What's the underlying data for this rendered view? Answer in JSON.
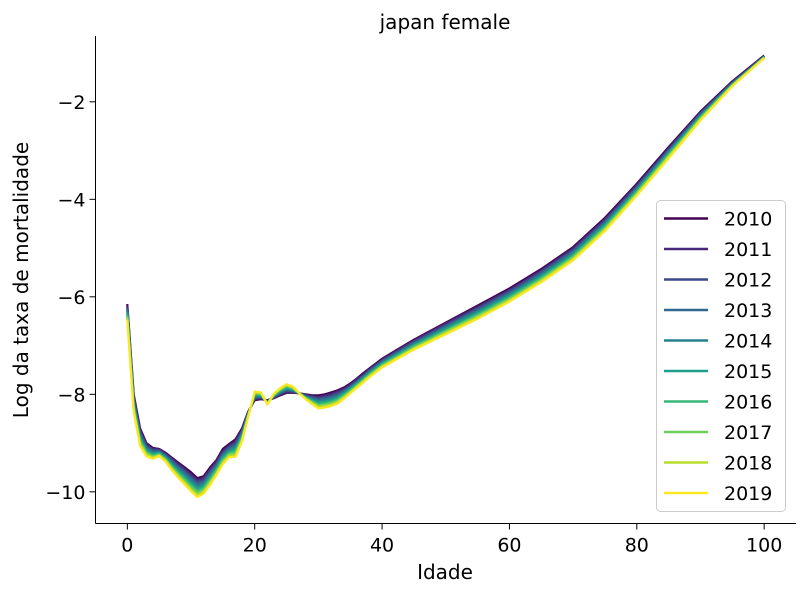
{
  "chart_data": {
    "type": "line",
    "title": "japan female",
    "xlabel": "Idade",
    "ylabel": "Log da taxa de mortalidade",
    "xlim": [
      -5,
      105
    ],
    "ylim": [
      -10.65,
      -0.65
    ],
    "xticks": [
      0,
      20,
      40,
      60,
      80,
      100
    ],
    "yticks": [
      -10,
      -8,
      -6,
      -4,
      -2
    ],
    "xtick_labels": [
      "0",
      "20",
      "40",
      "60",
      "80",
      "100"
    ],
    "ytick_labels": [
      "−10",
      "−8",
      "−6",
      "−4",
      "−2"
    ],
    "grid": false,
    "legend_position": "lower-right",
    "x": [
      0,
      1,
      2,
      3,
      4,
      5,
      6,
      7,
      8,
      9,
      10,
      11,
      12,
      13,
      14,
      15,
      16,
      17,
      18,
      19,
      20,
      21,
      22,
      23,
      24,
      25,
      26,
      27,
      28,
      29,
      30,
      31,
      32,
      33,
      34,
      35,
      36,
      37,
      38,
      39,
      40,
      45,
      50,
      55,
      60,
      65,
      70,
      75,
      80,
      85,
      90,
      95,
      100
    ],
    "series": [
      {
        "name": "2010",
        "color": "#440154",
        "values": [
          -6.15,
          -8.0,
          -8.7,
          -9.0,
          -9.1,
          -9.12,
          -9.2,
          -9.3,
          -9.4,
          -9.5,
          -9.6,
          -9.72,
          -9.68,
          -9.5,
          -9.35,
          -9.12,
          -9.02,
          -8.92,
          -8.7,
          -8.35,
          -8.12,
          -8.1,
          -8.12,
          -8.08,
          -8.02,
          -7.97,
          -7.97,
          -7.98,
          -8.0,
          -8.02,
          -8.02,
          -8.0,
          -7.96,
          -7.92,
          -7.86,
          -7.78,
          -7.68,
          -7.57,
          -7.47,
          -7.37,
          -7.27,
          -6.88,
          -6.53,
          -6.18,
          -5.83,
          -5.43,
          -4.98,
          -4.38,
          -3.68,
          -2.93,
          -2.2,
          -1.58,
          -1.05
        ]
      },
      {
        "name": "2011",
        "color": "#482878",
        "values": [
          -6.18,
          -8.04,
          -8.74,
          -9.03,
          -9.12,
          -9.13,
          -9.22,
          -9.32,
          -9.43,
          -9.53,
          -9.64,
          -9.76,
          -9.71,
          -9.54,
          -9.38,
          -9.16,
          -9.05,
          -8.96,
          -8.73,
          -8.36,
          -8.1,
          -8.08,
          -8.13,
          -8.07,
          -8.0,
          -7.95,
          -7.96,
          -7.98,
          -8.01,
          -8.04,
          -8.05,
          -8.03,
          -7.99,
          -7.95,
          -7.89,
          -7.8,
          -7.7,
          -7.6,
          -7.49,
          -7.39,
          -7.29,
          -6.9,
          -6.55,
          -6.21,
          -5.86,
          -5.46,
          -5.01,
          -4.41,
          -3.71,
          -2.96,
          -2.22,
          -1.6,
          -1.06
        ]
      },
      {
        "name": "2012",
        "color": "#3e4989",
        "values": [
          -6.22,
          -8.08,
          -8.78,
          -9.06,
          -9.15,
          -9.15,
          -9.24,
          -9.35,
          -9.47,
          -9.57,
          -9.69,
          -9.8,
          -9.75,
          -9.58,
          -9.42,
          -9.19,
          -9.08,
          -9.0,
          -8.76,
          -8.38,
          -8.08,
          -8.07,
          -8.14,
          -8.06,
          -7.99,
          -7.93,
          -7.94,
          -7.98,
          -8.03,
          -8.06,
          -8.08,
          -8.06,
          -8.03,
          -7.98,
          -7.91,
          -7.83,
          -7.73,
          -7.62,
          -7.51,
          -7.41,
          -7.31,
          -6.92,
          -6.58,
          -6.24,
          -5.89,
          -5.49,
          -5.04,
          -4.44,
          -3.74,
          -2.98,
          -2.24,
          -1.61,
          -1.07
        ]
      },
      {
        "name": "2013",
        "color": "#31688e",
        "values": [
          -6.26,
          -8.12,
          -8.82,
          -9.09,
          -9.17,
          -9.17,
          -9.26,
          -9.38,
          -9.5,
          -9.61,
          -9.73,
          -9.85,
          -9.79,
          -9.62,
          -9.45,
          -9.23,
          -9.11,
          -9.04,
          -8.79,
          -8.39,
          -8.06,
          -8.05,
          -8.15,
          -8.05,
          -7.97,
          -7.91,
          -7.93,
          -7.98,
          -8.04,
          -8.08,
          -8.11,
          -8.09,
          -8.06,
          -8.01,
          -7.94,
          -7.85,
          -7.75,
          -7.64,
          -7.53,
          -7.43,
          -7.33,
          -6.95,
          -6.61,
          -6.27,
          -5.92,
          -5.52,
          -5.07,
          -4.47,
          -3.76,
          -3.01,
          -2.26,
          -1.62,
          -1.07
        ]
      },
      {
        "name": "2014",
        "color": "#26828e",
        "values": [
          -6.29,
          -8.16,
          -8.86,
          -9.12,
          -9.2,
          -9.19,
          -9.28,
          -9.41,
          -9.54,
          -9.65,
          -9.77,
          -9.89,
          -9.83,
          -9.66,
          -9.48,
          -9.26,
          -9.14,
          -9.08,
          -8.82,
          -8.4,
          -8.04,
          -8.04,
          -8.16,
          -8.04,
          -7.95,
          -7.89,
          -7.92,
          -7.98,
          -8.05,
          -8.1,
          -8.14,
          -8.12,
          -8.09,
          -8.04,
          -7.96,
          -7.87,
          -7.77,
          -7.66,
          -7.55,
          -7.45,
          -7.35,
          -6.97,
          -6.63,
          -6.3,
          -5.95,
          -5.55,
          -5.1,
          -4.5,
          -3.79,
          -3.03,
          -2.28,
          -1.63,
          -1.08
        ]
      },
      {
        "name": "2015",
        "color": "#1f9e89",
        "values": [
          -6.33,
          -8.2,
          -8.9,
          -9.15,
          -9.22,
          -9.2,
          -9.3,
          -9.44,
          -9.57,
          -9.69,
          -9.82,
          -9.93,
          -9.87,
          -9.7,
          -9.52,
          -9.29,
          -9.17,
          -9.12,
          -8.85,
          -8.41,
          -8.02,
          -8.02,
          -8.17,
          -8.03,
          -7.94,
          -7.87,
          -7.9,
          -7.98,
          -8.06,
          -8.12,
          -8.17,
          -8.15,
          -8.12,
          -8.07,
          -7.99,
          -7.89,
          -7.79,
          -7.68,
          -7.57,
          -7.47,
          -7.37,
          -6.99,
          -6.66,
          -6.33,
          -5.98,
          -5.58,
          -5.13,
          -4.53,
          -3.82,
          -3.06,
          -2.3,
          -1.64,
          -1.08
        ]
      },
      {
        "name": "2016",
        "color": "#35b779",
        "values": [
          -6.37,
          -8.24,
          -8.94,
          -9.18,
          -9.25,
          -9.22,
          -9.32,
          -9.47,
          -9.61,
          -9.73,
          -9.86,
          -9.98,
          -9.91,
          -9.74,
          -9.55,
          -9.33,
          -9.2,
          -9.16,
          -8.88,
          -8.42,
          -8.0,
          -8.01,
          -8.18,
          -8.02,
          -7.92,
          -7.85,
          -7.89,
          -7.98,
          -8.07,
          -8.14,
          -8.2,
          -8.18,
          -8.15,
          -8.1,
          -8.01,
          -7.92,
          -7.81,
          -7.7,
          -7.59,
          -7.49,
          -7.39,
          -7.01,
          -6.69,
          -6.36,
          -6.01,
          -5.61,
          -5.16,
          -4.56,
          -3.84,
          -3.08,
          -2.32,
          -1.65,
          -1.09
        ]
      },
      {
        "name": "2017",
        "color": "#6ece58",
        "values": [
          -6.4,
          -8.28,
          -8.98,
          -9.21,
          -9.27,
          -9.24,
          -9.34,
          -9.5,
          -9.64,
          -9.77,
          -9.9,
          -10.02,
          -9.95,
          -9.78,
          -9.58,
          -9.36,
          -9.23,
          -9.2,
          -8.91,
          -8.43,
          -7.98,
          -7.99,
          -8.19,
          -8.01,
          -7.9,
          -7.83,
          -7.87,
          -7.98,
          -8.08,
          -8.16,
          -8.23,
          -8.21,
          -8.18,
          -8.13,
          -8.04,
          -7.94,
          -7.83,
          -7.72,
          -7.61,
          -7.51,
          -7.41,
          -7.04,
          -6.71,
          -6.39,
          -6.04,
          -5.64,
          -5.19,
          -4.59,
          -3.87,
          -3.11,
          -2.34,
          -1.66,
          -1.09
        ]
      },
      {
        "name": "2018",
        "color": "#b5de2b",
        "values": [
          -6.44,
          -8.32,
          -9.02,
          -9.24,
          -9.3,
          -9.25,
          -9.36,
          -9.53,
          -9.68,
          -9.81,
          -9.95,
          -10.07,
          -9.99,
          -9.82,
          -9.62,
          -9.4,
          -9.26,
          -9.24,
          -8.94,
          -8.44,
          -7.96,
          -7.98,
          -8.2,
          -8.0,
          -7.89,
          -7.81,
          -7.86,
          -7.98,
          -8.09,
          -8.18,
          -8.26,
          -8.24,
          -8.21,
          -8.16,
          -8.06,
          -7.96,
          -7.85,
          -7.74,
          -7.63,
          -7.53,
          -7.43,
          -7.06,
          -6.74,
          -6.42,
          -6.07,
          -5.67,
          -5.22,
          -4.62,
          -3.9,
          -3.13,
          -2.36,
          -1.67,
          -1.1
        ]
      },
      {
        "name": "2019",
        "color": "#fde725",
        "values": [
          -6.48,
          -8.36,
          -9.06,
          -9.27,
          -9.32,
          -9.27,
          -9.38,
          -9.56,
          -9.71,
          -9.85,
          -9.99,
          -10.11,
          -10.03,
          -9.86,
          -9.65,
          -9.43,
          -9.29,
          -9.28,
          -8.97,
          -8.45,
          -7.94,
          -7.96,
          -8.21,
          -7.99,
          -7.87,
          -7.79,
          -7.84,
          -7.98,
          -8.1,
          -8.2,
          -8.29,
          -8.27,
          -8.24,
          -8.19,
          -8.09,
          -7.98,
          -7.87,
          -7.76,
          -7.65,
          -7.55,
          -7.45,
          -7.08,
          -6.77,
          -6.45,
          -6.1,
          -5.7,
          -5.25,
          -4.65,
          -3.92,
          -3.16,
          -2.38,
          -1.68,
          -1.1
        ]
      }
    ]
  }
}
